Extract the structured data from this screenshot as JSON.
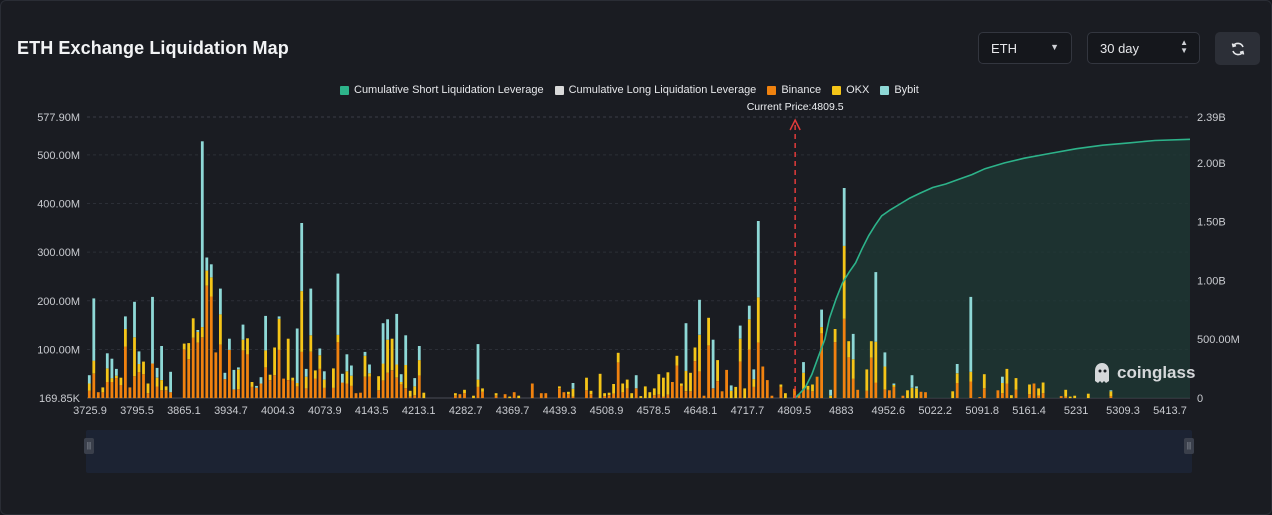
{
  "header": {
    "title": "ETH Exchange Liquidation Map",
    "coin_select": "ETH",
    "range_select": "30 day"
  },
  "legend": [
    {
      "label": "Cumulative Short Liquidation Leverage",
      "color": "#2db38a"
    },
    {
      "label": "Cumulative Long Liquidation Leverage",
      "color": "#d9d9d9"
    },
    {
      "label": "Binance",
      "color": "#f0820f"
    },
    {
      "label": "OKX",
      "color": "#f5c518"
    },
    {
      "label": "Bybit",
      "color": "#8ed8d6"
    }
  ],
  "watermark": "coinglass",
  "chart_data": {
    "type": "bar",
    "current_price_label": "Current Price:4809.5",
    "current_price": 4809.5,
    "x_ticks": [
      "3725.9",
      "3795.5",
      "3865.1",
      "3934.7",
      "4004.3",
      "4073.9",
      "4143.5",
      "4213.1",
      "4282.7",
      "4369.7",
      "4439.3",
      "4508.9",
      "4578.5",
      "4648.1",
      "4717.7",
      "4809.5",
      "4883",
      "4952.6",
      "5022.2",
      "5091.8",
      "5161.4",
      "5231",
      "5309.3",
      "5413.7"
    ],
    "y_left_ticks": [
      "577.90M",
      "500.00M",
      "400.00M",
      "300.00M",
      "200.00M",
      "100.00M",
      "169.85K"
    ],
    "y_left_values": [
      577.9,
      500,
      400,
      300,
      200,
      100,
      0.17
    ],
    "y_left_range_millions": [
      0.17,
      577.9
    ],
    "y_right_ticks": [
      "2.39B",
      "2.00B",
      "1.50B",
      "1.00B",
      "500.00M",
      "0"
    ],
    "y_right_values": [
      2.39,
      2.0,
      1.5,
      1.0,
      0.5,
      0
    ],
    "y_right_range_billions": [
      0,
      2.39
    ],
    "price_range": [
      3725.9,
      5413.7
    ],
    "colors": {
      "binance": "#f0820f",
      "okx": "#f5c518",
      "bybit": "#8ed8d6",
      "short": "#2db38a"
    },
    "series_order": [
      "Binance",
      "OKX",
      "Bybit"
    ],
    "bars_millions": [
      [
        15,
        15,
        17
      ],
      [
        50,
        27,
        128
      ],
      [
        12,
        0,
        0
      ],
      [
        12,
        10,
        0
      ],
      [
        33,
        28,
        31
      ],
      [
        33,
        8,
        40
      ],
      [
        41,
        5,
        14
      ],
      [
        27,
        15,
        0
      ],
      [
        106,
        36,
        26
      ],
      [
        22,
        0,
        0
      ],
      [
        45,
        80,
        73
      ],
      [
        53,
        17,
        26
      ],
      [
        49,
        26,
        0
      ],
      [
        10,
        20,
        0
      ],
      [
        71,
        0,
        137
      ],
      [
        24,
        18,
        20
      ],
      [
        16,
        21,
        70
      ],
      [
        16,
        8,
        0
      ],
      [
        12,
        0,
        42
      ],
      [
        0,
        0,
        0
      ],
      [
        0,
        0,
        0
      ],
      [
        100,
        12,
        0
      ],
      [
        80,
        33,
        0
      ],
      [
        124,
        40,
        0
      ],
      [
        114,
        22,
        4
      ],
      [
        125,
        21,
        382
      ],
      [
        231,
        31,
        27
      ],
      [
        209,
        39,
        27
      ],
      [
        94,
        0,
        0
      ],
      [
        110,
        62,
        53
      ],
      [
        39,
        0,
        13
      ],
      [
        99,
        0,
        23
      ],
      [
        18,
        0,
        40
      ],
      [
        18,
        41,
        4
      ],
      [
        98,
        22,
        31
      ],
      [
        90,
        33,
        0
      ],
      [
        23,
        10,
        0
      ],
      [
        21,
        0,
        4
      ],
      [
        30,
        0,
        13
      ],
      [
        63,
        35,
        71
      ],
      [
        37,
        11,
        0
      ],
      [
        47,
        57,
        0
      ],
      [
        99,
        64,
        5
      ],
      [
        40,
        0,
        0
      ],
      [
        37,
        85,
        0
      ],
      [
        36,
        6,
        0
      ],
      [
        24,
        7,
        112
      ],
      [
        95,
        125,
        140
      ],
      [
        20,
        24,
        16
      ],
      [
        95,
        34,
        96
      ],
      [
        40,
        17,
        0
      ],
      [
        60,
        28,
        14
      ],
      [
        21,
        17,
        17
      ],
      [
        0,
        0,
        0
      ],
      [
        21,
        40,
        0
      ],
      [
        115,
        15,
        126
      ],
      [
        32,
        0,
        18
      ],
      [
        30,
        25,
        35
      ],
      [
        25,
        21,
        21
      ],
      [
        10,
        0,
        0
      ],
      [
        11,
        0,
        0
      ],
      [
        44,
        43,
        8
      ],
      [
        44,
        7,
        18
      ],
      [
        0,
        0,
        0
      ],
      [
        16,
        29,
        0
      ],
      [
        36,
        35,
        83
      ],
      [
        52,
        68,
        42
      ],
      [
        57,
        65,
        0
      ],
      [
        42,
        27,
        104
      ],
      [
        28,
        5,
        16
      ],
      [
        20,
        48,
        61
      ],
      [
        3,
        12,
        0
      ],
      [
        6,
        18,
        17
      ],
      [
        46,
        32,
        29
      ],
      [
        0,
        11,
        0
      ],
      [
        0,
        0,
        0
      ],
      [
        0,
        0,
        0
      ],
      [
        0,
        0,
        0
      ],
      [
        0,
        0,
        0
      ],
      [
        0,
        0,
        0
      ],
      [
        0,
        0,
        0
      ],
      [
        5,
        5,
        0
      ],
      [
        8,
        0,
        0
      ],
      [
        10,
        7,
        0
      ],
      [
        0,
        0,
        0
      ],
      [
        0,
        5,
        0
      ],
      [
        23,
        15,
        73
      ],
      [
        13,
        7,
        0
      ],
      [
        0,
        0,
        0
      ],
      [
        0,
        0,
        0
      ],
      [
        5,
        5,
        0
      ],
      [
        0,
        0,
        0
      ],
      [
        8,
        0,
        0
      ],
      [
        0,
        3,
        0
      ],
      [
        12,
        0,
        0
      ],
      [
        0,
        5,
        0
      ],
      [
        0,
        0,
        0
      ],
      [
        0,
        0,
        0
      ],
      [
        30,
        0,
        0
      ],
      [
        0,
        0,
        0
      ],
      [
        10,
        0,
        0
      ],
      [
        10,
        0,
        0
      ],
      [
        0,
        0,
        0
      ],
      [
        0,
        0,
        0
      ],
      [
        20,
        4,
        0
      ],
      [
        12,
        0,
        0
      ],
      [
        8,
        5,
        0
      ],
      [
        3,
        16,
        12
      ],
      [
        0,
        0,
        0
      ],
      [
        0,
        0,
        0
      ],
      [
        16,
        26,
        0
      ],
      [
        8,
        7,
        0
      ],
      [
        0,
        0,
        0
      ],
      [
        0,
        50,
        0
      ],
      [
        4,
        6,
        0
      ],
      [
        6,
        5,
        0
      ],
      [
        9,
        20,
        0
      ],
      [
        73,
        20,
        0
      ],
      [
        12,
        18,
        0
      ],
      [
        20,
        18,
        0
      ],
      [
        0,
        10,
        0
      ],
      [
        20,
        0,
        27
      ],
      [
        0,
        4,
        0
      ],
      [
        0,
        24,
        0
      ],
      [
        0,
        12,
        0
      ],
      [
        6,
        14,
        0
      ],
      [
        7,
        42,
        0
      ],
      [
        3,
        39,
        0
      ],
      [
        7,
        46,
        0
      ],
      [
        33,
        0,
        0
      ],
      [
        67,
        20,
        0
      ],
      [
        25,
        5,
        0
      ],
      [
        14,
        42,
        98
      ],
      [
        14,
        38,
        0
      ],
      [
        76,
        28,
        0
      ],
      [
        55,
        75,
        72
      ],
      [
        5,
        0,
        0
      ],
      [
        108,
        57,
        0
      ],
      [
        20,
        0,
        100
      ],
      [
        35,
        43,
        0
      ],
      [
        14,
        0,
        0
      ],
      [
        58,
        0,
        0
      ],
      [
        0,
        15,
        11
      ],
      [
        0,
        23,
        0
      ],
      [
        75,
        47,
        27
      ],
      [
        0,
        20,
        0
      ],
      [
        100,
        62,
        28
      ],
      [
        23,
        16,
        20
      ],
      [
        114,
        93,
        157
      ],
      [
        65,
        0,
        0
      ],
      [
        37,
        0,
        0
      ],
      [
        5,
        0,
        0
      ],
      [
        0,
        0,
        0
      ],
      [
        23,
        5,
        0
      ],
      [
        0,
        10,
        0
      ],
      [
        0,
        0,
        0
      ],
      [
        19,
        0,
        0
      ],
      [
        8,
        0,
        0
      ],
      [
        19,
        33,
        22
      ],
      [
        17,
        8,
        0
      ],
      [
        14,
        14,
        0
      ],
      [
        44,
        0,
        0
      ],
      [
        133,
        13,
        36
      ],
      [
        0,
        0,
        0
      ],
      [
        0,
        5,
        12
      ],
      [
        115,
        27,
        0
      ],
      [
        0,
        0,
        0
      ],
      [
        163,
        150,
        119
      ],
      [
        84,
        33,
        0
      ],
      [
        40,
        40,
        52
      ],
      [
        17,
        0,
        0
      ],
      [
        0,
        0,
        0
      ],
      [
        15,
        44,
        0
      ],
      [
        83,
        34,
        0
      ],
      [
        32,
        84,
        143
      ],
      [
        0,
        0,
        0
      ],
      [
        18,
        47,
        29
      ],
      [
        16,
        0,
        0
      ],
      [
        23,
        4,
        3
      ],
      [
        0,
        0,
        0
      ],
      [
        5,
        0,
        0
      ],
      [
        0,
        16,
        0
      ],
      [
        0,
        21,
        26
      ],
      [
        0,
        20,
        4
      ],
      [
        13,
        0,
        0
      ],
      [
        12,
        0,
        0
      ],
      [
        0,
        0,
        0
      ],
      [
        0,
        0,
        0
      ],
      [
        0,
        0,
        0
      ],
      [
        0,
        0,
        0
      ],
      [
        0,
        0,
        0
      ],
      [
        0,
        14,
        0
      ],
      [
        31,
        20,
        19
      ],
      [
        0,
        0,
        0
      ],
      [
        0,
        0,
        0
      ],
      [
        34,
        20,
        154
      ],
      [
        0,
        0,
        0
      ],
      [
        2,
        0,
        0
      ],
      [
        20,
        29,
        0
      ],
      [
        0,
        0,
        0
      ],
      [
        0,
        0,
        0
      ],
      [
        16,
        0,
        0
      ],
      [
        10,
        21,
        13
      ],
      [
        30,
        30,
        0
      ],
      [
        0,
        6,
        0
      ],
      [
        17,
        24,
        0
      ],
      [
        0,
        0,
        0
      ],
      [
        0,
        0,
        0
      ],
      [
        8,
        20,
        0
      ],
      [
        30,
        0,
        0
      ],
      [
        5,
        15,
        0
      ],
      [
        10,
        22,
        0
      ],
      [
        0,
        0,
        0
      ],
      [
        0,
        0,
        0
      ],
      [
        0,
        0,
        0
      ],
      [
        4,
        0,
        0
      ],
      [
        3,
        14,
        0
      ],
      [
        0,
        3,
        0
      ],
      [
        0,
        5,
        0
      ],
      [
        0,
        0,
        0
      ],
      [
        0,
        0,
        0
      ],
      [
        0,
        9,
        0
      ],
      [
        0,
        0,
        0
      ],
      [
        0,
        0,
        0
      ],
      [
        0,
        0,
        0
      ],
      [
        0,
        0,
        0
      ],
      [
        4,
        10,
        2
      ],
      [
        0,
        0,
        0
      ],
      [
        0,
        0,
        0
      ],
      [
        0,
        0,
        0
      ],
      [
        0,
        0,
        0
      ],
      [
        0,
        0,
        0
      ],
      [
        0,
        0,
        0
      ],
      [
        0,
        0,
        0
      ],
      [
        0,
        0,
        0
      ],
      [
        0,
        0,
        0
      ],
      [
        0,
        0,
        0
      ],
      [
        0,
        0,
        0
      ],
      [
        0,
        0,
        0
      ],
      [
        0,
        0,
        0
      ],
      [
        0,
        0,
        0
      ],
      [
        0,
        0,
        0
      ],
      [
        0,
        0,
        0
      ],
      [
        0,
        0,
        0
      ]
    ],
    "short_cumulative_billions": [
      [
        4809.5,
        0.0
      ],
      [
        4815,
        0.03
      ],
      [
        4825,
        0.09
      ],
      [
        4835,
        0.2
      ],
      [
        4845,
        0.35
      ],
      [
        4855,
        0.5
      ],
      [
        4862,
        0.68
      ],
      [
        4872,
        0.84
      ],
      [
        4882,
        0.98
      ],
      [
        4892,
        1.07
      ],
      [
        4902,
        1.15
      ],
      [
        4912,
        1.27
      ],
      [
        4922,
        1.38
      ],
      [
        4932,
        1.47
      ],
      [
        4942,
        1.55
      ],
      [
        4955,
        1.6
      ],
      [
        4970,
        1.65
      ],
      [
        4985,
        1.7
      ],
      [
        5000,
        1.74
      ],
      [
        5020,
        1.79
      ],
      [
        5040,
        1.82
      ],
      [
        5060,
        1.86
      ],
      [
        5080,
        1.9
      ],
      [
        5100,
        1.95
      ],
      [
        5130,
        2.0
      ],
      [
        5160,
        2.04
      ],
      [
        5200,
        2.08
      ],
      [
        5240,
        2.12
      ],
      [
        5280,
        2.15
      ],
      [
        5320,
        2.17
      ],
      [
        5360,
        2.19
      ],
      [
        5413.7,
        2.2
      ]
    ]
  }
}
